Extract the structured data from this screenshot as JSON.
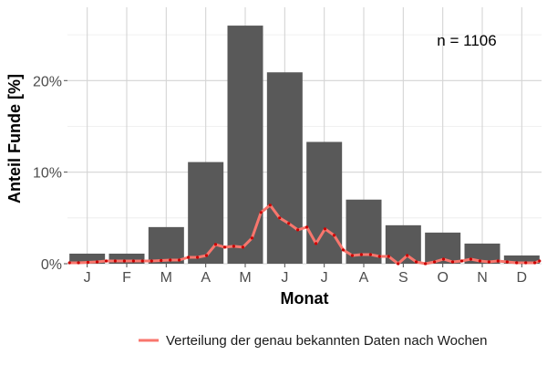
{
  "chart_data": {
    "type": "bar",
    "xlabel": "Monat",
    "ylabel": "Anteil Funde [%]",
    "categories": [
      "J",
      "F",
      "M",
      "A",
      "M",
      "J",
      "J",
      "A",
      "S",
      "O",
      "N",
      "D"
    ],
    "values": [
      1.1,
      1.1,
      4.0,
      11.1,
      26.0,
      20.9,
      13.3,
      7.0,
      4.2,
      3.4,
      2.2,
      0.9
    ],
    "ylim": [
      0,
      28
    ],
    "yticks": [
      0,
      10,
      20
    ],
    "ytick_labels": [
      "0%",
      "10%",
      "20%"
    ],
    "grid": true,
    "annotation": "n = 1106",
    "bar_color": "#595959",
    "line_series": {
      "name": "Verteilung der genau bekannten Daten nach Wochen",
      "color": "#f8766d",
      "dot_color": "#cc0000",
      "x": [
        0.05,
        0.28,
        0.52,
        0.75,
        0.98,
        1.21,
        1.44,
        1.67,
        1.9,
        2.13,
        2.37,
        2.6,
        2.83,
        3.06,
        3.29,
        3.52,
        3.75,
        3.98,
        4.21,
        4.44,
        4.67,
        4.9,
        5.13,
        5.37,
        5.6,
        5.83,
        6.06,
        6.29,
        6.52,
        6.75,
        6.98,
        7.21,
        7.44,
        7.67,
        7.9,
        8.13,
        8.37,
        8.6,
        8.83,
        9.06,
        9.29,
        9.52,
        9.75,
        9.98,
        10.21,
        10.44,
        10.67,
        10.9,
        11.13,
        11.37,
        11.6,
        11.83,
        11.95
      ],
      "y": [
        0.1,
        0.1,
        0.15,
        0.2,
        0.3,
        0.3,
        0.3,
        0.3,
        0.3,
        0.3,
        0.35,
        0.4,
        0.4,
        0.7,
        0.7,
        0.9,
        2.1,
        1.8,
        1.9,
        1.8,
        2.8,
        5.6,
        6.4,
        5.0,
        4.4,
        3.7,
        4.0,
        2.2,
        3.8,
        3.1,
        1.5,
        0.9,
        1.0,
        1.0,
        0.8,
        0.8,
        0.0,
        0.9,
        0.2,
        0.0,
        0.2,
        0.5,
        0.2,
        0.3,
        0.5,
        0.3,
        0.2,
        0.3,
        0.2,
        0.1,
        0.1,
        0.1,
        0.3
      ]
    }
  }
}
